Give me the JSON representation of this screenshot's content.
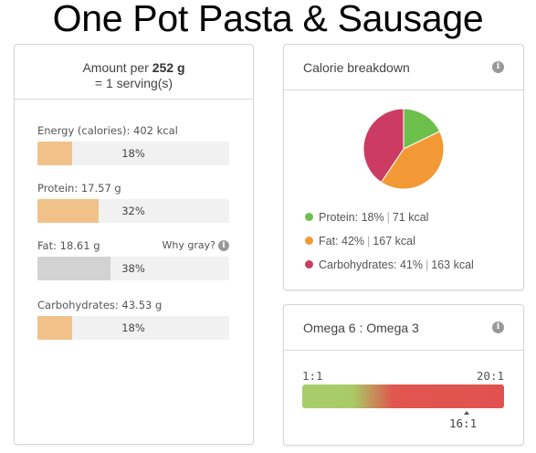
{
  "title": "One Pot Pasta & Sausage",
  "nutrition": {
    "amount_prefix": "Amount per",
    "amount_value": "252 g",
    "serving": "= 1 serving(s)",
    "why_gray": "Why gray?",
    "items": [
      {
        "label": "Energy (calories): 402 kcal",
        "percent_label": "18%",
        "percent": 18,
        "gray": false
      },
      {
        "label": "Protein: 17.57 g",
        "percent_label": "32%",
        "percent": 32,
        "gray": false
      },
      {
        "label": "Fat: 18.61 g",
        "percent_label": "38%",
        "percent": 38,
        "gray": true
      },
      {
        "label": "Carbohydrates: 43.53 g",
        "percent_label": "18%",
        "percent": 18,
        "gray": false
      }
    ]
  },
  "calorie_breakdown": {
    "title": "Calorie breakdown",
    "info_icon": "info-icon",
    "slices": [
      {
        "name": "Protein",
        "percent": 18,
        "pct_label": "18%",
        "kcal": "71 kcal",
        "color": "#6cbf4a"
      },
      {
        "name": "Fat",
        "percent": 42,
        "pct_label": "42%",
        "kcal": "167 kcal",
        "color": "#f29935"
      },
      {
        "name": "Carbohydrates",
        "percent": 41,
        "pct_label": "41%",
        "kcal": "163 kcal",
        "color": "#cc3b62"
      }
    ]
  },
  "omega": {
    "title": "Omega 6 : Omega 3",
    "min_label": "1:1",
    "max_label": "20:1",
    "value_label": "16:1",
    "value": 16
  },
  "colors": {
    "bar_fill": "#f0c28a",
    "bar_fill_gray": "#d2d2d2",
    "omega_green": "#a7cd6a",
    "omega_red": "#e0524f"
  }
}
